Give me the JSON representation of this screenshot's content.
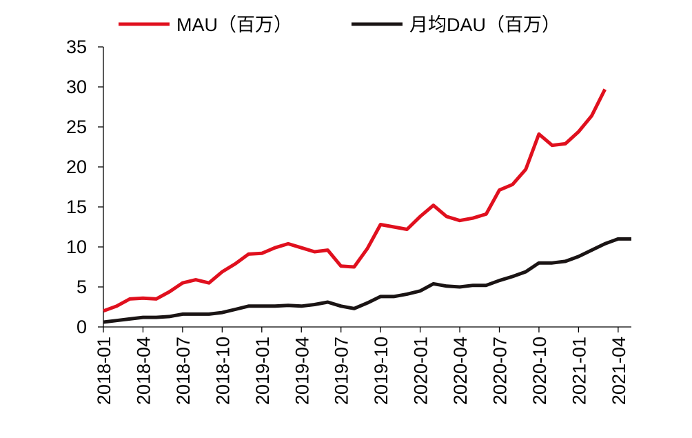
{
  "chart_data": {
    "type": "line",
    "title": "",
    "xlabel": "",
    "ylabel": "",
    "ylim": [
      0,
      35
    ],
    "yticks": [
      "0",
      "5",
      "10",
      "15",
      "20",
      "25",
      "30",
      "35"
    ],
    "xtick_labels": [
      "2018-01",
      "2018-04",
      "2018-07",
      "2018-10",
      "2019-01",
      "2019-04",
      "2019-07",
      "2019-10",
      "2020-01",
      "2020-04",
      "2020-07",
      "2020-10",
      "2021-01",
      "2021-04"
    ],
    "x": [
      "2018-01",
      "2018-02",
      "2018-03",
      "2018-04",
      "2018-05",
      "2018-06",
      "2018-07",
      "2018-08",
      "2018-09",
      "2018-10",
      "2018-11",
      "2018-12",
      "2019-01",
      "2019-02",
      "2019-03",
      "2019-04",
      "2019-05",
      "2019-06",
      "2019-07",
      "2019-08",
      "2019-09",
      "2019-10",
      "2019-11",
      "2019-12",
      "2020-01",
      "2020-02",
      "2020-03",
      "2020-04",
      "2020-05",
      "2020-06",
      "2020-07",
      "2020-08",
      "2020-09",
      "2020-10",
      "2020-11",
      "2020-12",
      "2021-01",
      "2021-02",
      "2021-03",
      "2021-04",
      "2021-05"
    ],
    "legend_position": "top",
    "grid": false,
    "series": [
      {
        "name": "MAU（百万）",
        "color": "#e0101e",
        "values": [
          2.0,
          2.6,
          3.5,
          3.6,
          3.5,
          4.4,
          5.5,
          5.9,
          5.5,
          6.9,
          7.9,
          9.1,
          9.2,
          9.9,
          10.4,
          9.9,
          9.4,
          9.6,
          7.6,
          7.5,
          9.8,
          12.8,
          12.5,
          12.2,
          13.8,
          15.2,
          13.8,
          13.3,
          13.6,
          14.1,
          17.1,
          17.8,
          19.7,
          24.1,
          22.7,
          22.9,
          24.4,
          26.4,
          29.7,
          null,
          null
        ]
      },
      {
        "name": "月均DAU（百万）",
        "color": "#1a1414",
        "values": [
          0.6,
          0.8,
          1.0,
          1.2,
          1.2,
          1.3,
          1.6,
          1.6,
          1.6,
          1.8,
          2.2,
          2.6,
          2.6,
          2.6,
          2.7,
          2.6,
          2.8,
          3.1,
          2.6,
          2.3,
          3.0,
          3.8,
          3.8,
          4.1,
          4.5,
          5.4,
          5.1,
          5.0,
          5.2,
          5.2,
          5.8,
          6.3,
          6.9,
          8.0,
          8.0,
          8.2,
          8.8,
          9.6,
          10.4,
          11.0,
          11.0
        ]
      }
    ]
  }
}
